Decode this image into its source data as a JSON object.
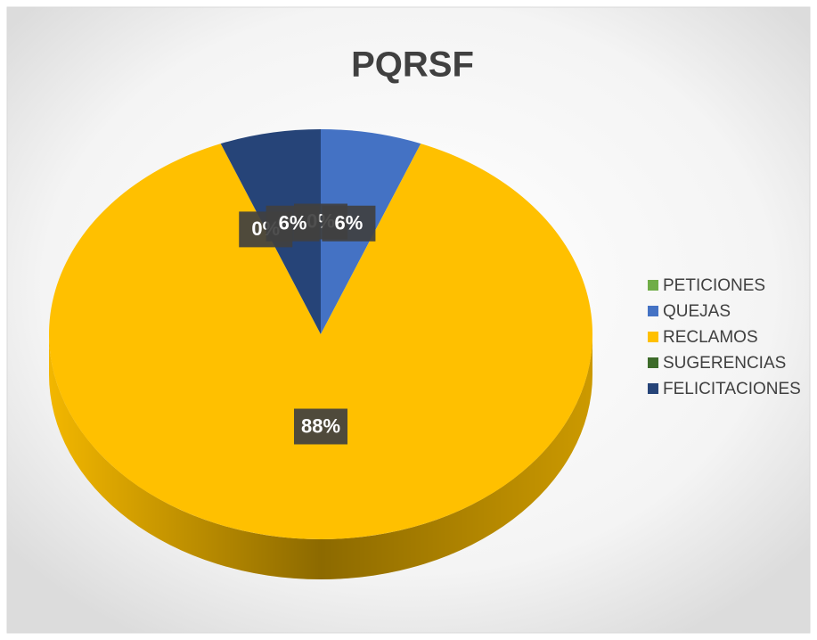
{
  "chart_data": {
    "type": "pie",
    "title": "PQRSF",
    "categories": [
      "PETICIONES",
      "QUEJAS",
      "RECLAMOS",
      "SUGERENCIAS",
      "FELICITACIONES"
    ],
    "values": [
      0,
      6,
      88,
      0,
      6
    ],
    "value_labels": [
      "0%",
      "6%",
      "88%",
      "0%",
      "6%"
    ],
    "colors": [
      "#70ad47",
      "#4472c4",
      "#ffc000",
      "#3d6b2a",
      "#264478"
    ],
    "legend": "right"
  }
}
